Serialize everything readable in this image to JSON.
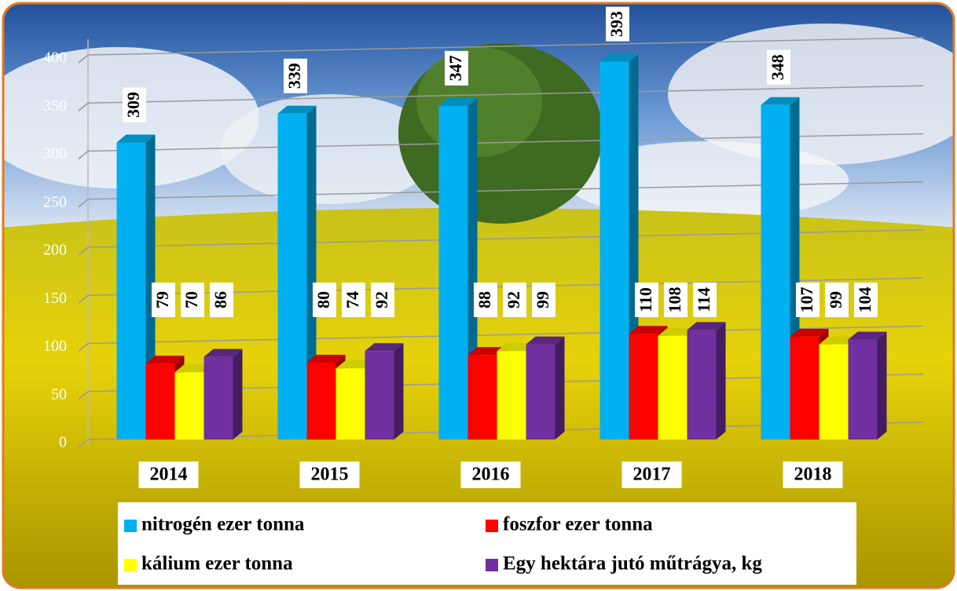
{
  "chart_data": {
    "type": "bar3d",
    "categories": [
      "2014",
      "2015",
      "2016",
      "2017",
      "2018"
    ],
    "series": [
      {
        "name": "nitrogén ezer tonna",
        "color": "#00b0f0",
        "values": [
          309,
          339,
          347,
          393,
          348
        ]
      },
      {
        "name": "foszfor ezer tonna",
        "color": "#ff0000",
        "values": [
          79,
          80,
          88,
          110,
          107
        ]
      },
      {
        "name": "kálium ezer tonna",
        "color": "#ffff00",
        "values": [
          70,
          74,
          92,
          108,
          99
        ]
      },
      {
        "name": "Egy hektára jutó műtrágya, kg",
        "color": "#7030a0",
        "values": [
          86,
          92,
          99,
          114,
          104
        ]
      }
    ],
    "ylim": [
      0,
      400
    ],
    "yticks": [
      0,
      50,
      100,
      150,
      200,
      250,
      300,
      350,
      400
    ],
    "grid": true
  }
}
